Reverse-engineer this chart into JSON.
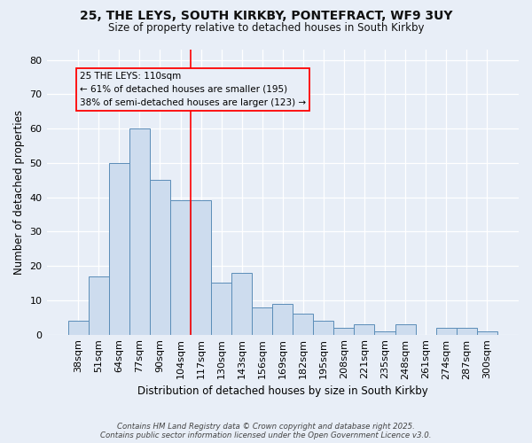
{
  "title_line1": "25, THE LEYS, SOUTH KIRKBY, PONTEFRACT, WF9 3UY",
  "title_line2": "Size of property relative to detached houses in South Kirkby",
  "xlabel": "Distribution of detached houses by size in South Kirkby",
  "ylabel": "Number of detached properties",
  "bar_color": "#cddcee",
  "bar_edge_color": "#5b8db8",
  "categories": [
    "38sqm",
    "51sqm",
    "64sqm",
    "77sqm",
    "90sqm",
    "104sqm",
    "117sqm",
    "130sqm",
    "143sqm",
    "156sqm",
    "169sqm",
    "182sqm",
    "195sqm",
    "208sqm",
    "221sqm",
    "235sqm",
    "248sqm",
    "261sqm",
    "274sqm",
    "287sqm",
    "300sqm"
  ],
  "values": [
    4,
    17,
    50,
    60,
    45,
    39,
    39,
    15,
    18,
    8,
    9,
    6,
    4,
    2,
    3,
    1,
    3,
    0,
    2,
    2,
    1
  ],
  "ylim_max": 83,
  "yticks": [
    0,
    10,
    20,
    30,
    40,
    50,
    60,
    70,
    80
  ],
  "red_line_x": 5.5,
  "annotation_line1": "25 THE LEYS: 110sqm",
  "annotation_line2": "← 61% of detached houses are smaller (195)",
  "annotation_line3": "38% of semi-detached houses are larger (123) →",
  "footer_text": "Contains HM Land Registry data © Crown copyright and database right 2025.\nContains public sector information licensed under the Open Government Licence v3.0.",
  "background_color": "#e8eef7",
  "grid_color": "#ffffff"
}
